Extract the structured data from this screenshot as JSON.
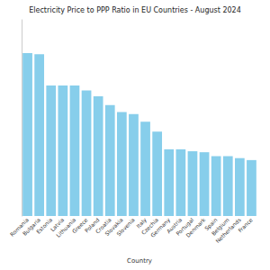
{
  "chart_data": {
    "type": "bar",
    "title": "Electricity Price to PPP Ratio in EU Countries - August 2024",
    "x_label": "Country",
    "categories": [
      "Romania",
      "Bulgaria",
      "Estonia",
      "Latvia",
      "Lithuania",
      "Greece",
      "Poland",
      "Croatia",
      "Slovakia",
      "Slovenia",
      "Italy",
      "Czechia",
      "Germany",
      "Austria",
      "Portugal",
      "Denmark",
      "Spain",
      "Belgium",
      "Netherlands",
      "France"
    ],
    "values": [
      1.66,
      1.65,
      1.33,
      1.33,
      1.33,
      1.28,
      1.22,
      1.13,
      1.06,
      1.04,
      0.96,
      0.86,
      0.68,
      0.68,
      0.66,
      0.65,
      0.61,
      0.61,
      0.59,
      0.57
    ],
    "color": "#87ceeb",
    "ylim": [
      0,
      2
    ],
    "grid": false,
    "tick_labels": "x"
  }
}
